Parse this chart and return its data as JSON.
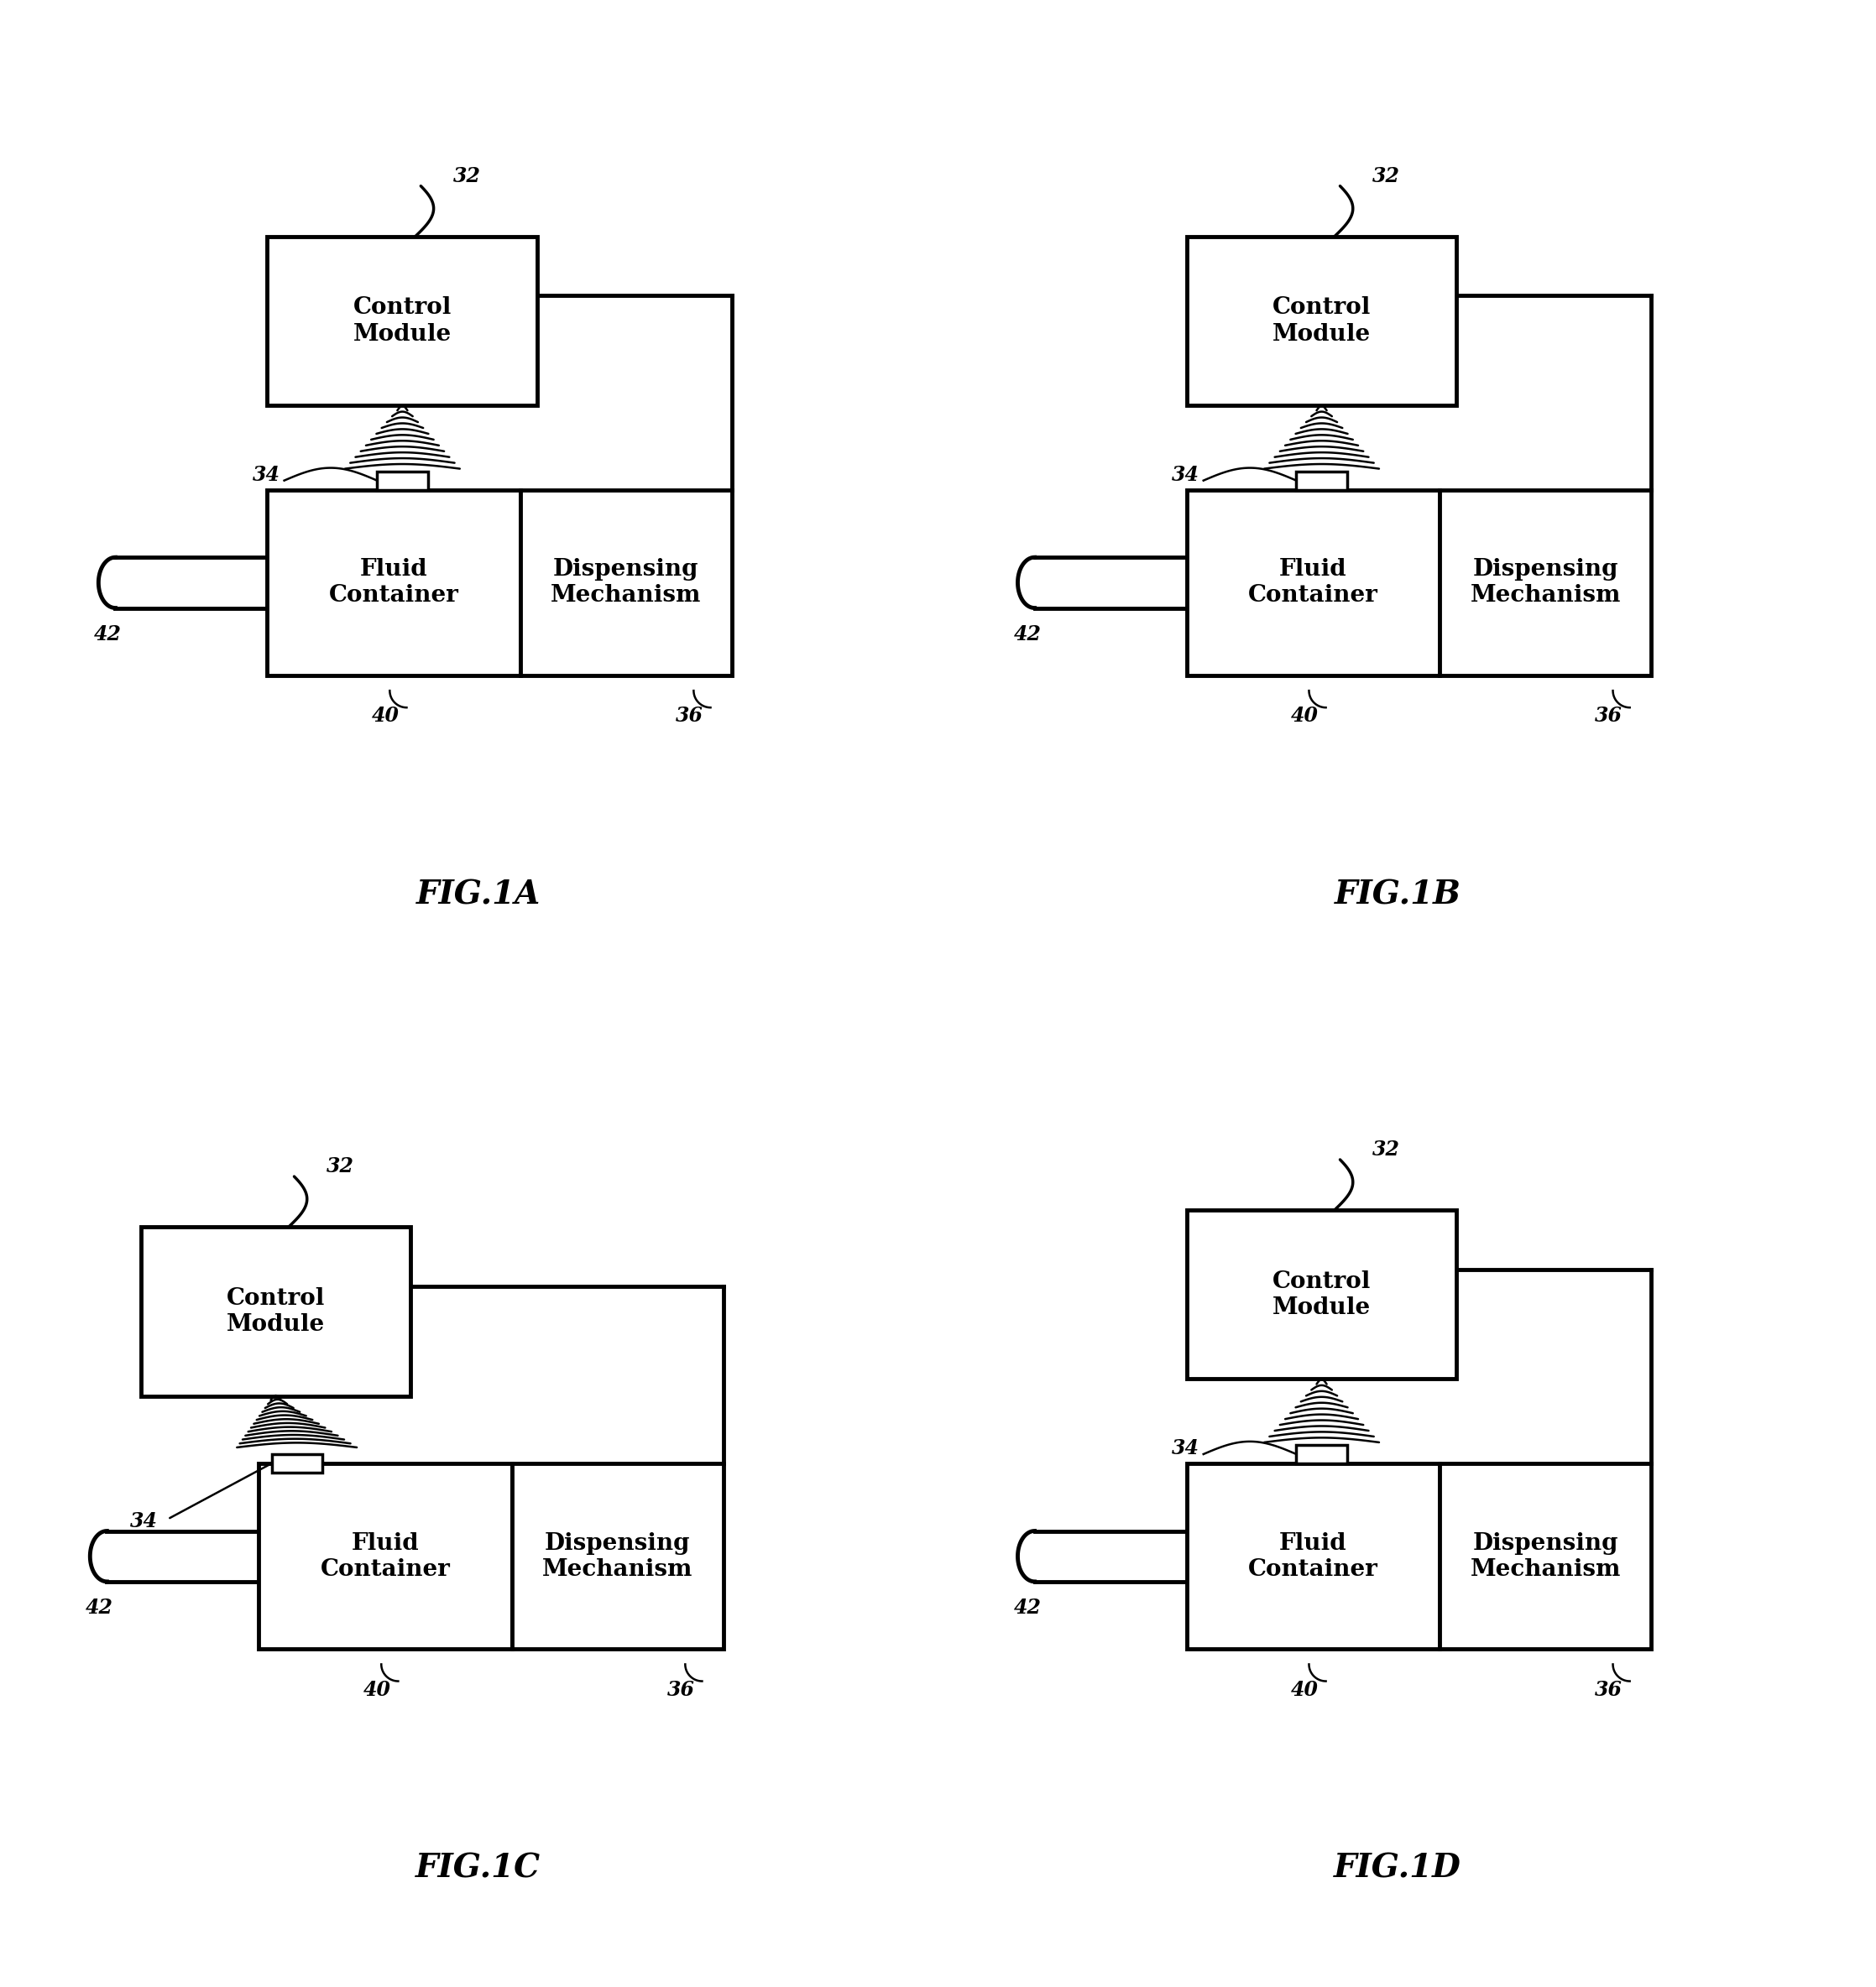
{
  "figures": [
    {
      "name": "FIG.1A",
      "col": 0,
      "row": 0,
      "variant": "A"
    },
    {
      "name": "FIG.1B",
      "col": 1,
      "row": 0,
      "variant": "B"
    },
    {
      "name": "FIG.1C",
      "col": 0,
      "row": 1,
      "variant": "C"
    },
    {
      "name": "FIG.1D",
      "col": 1,
      "row": 1,
      "variant": "D"
    }
  ],
  "background_color": "#ffffff",
  "line_color": "#000000",
  "lw_thick": 3.5,
  "lw_med": 2.5,
  "lw_thin": 1.8
}
